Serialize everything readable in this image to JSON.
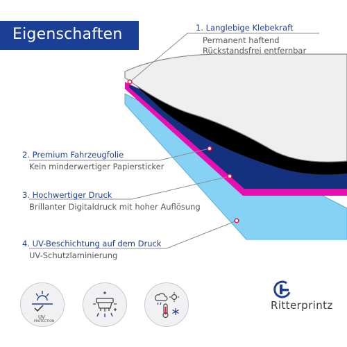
{
  "banner": {
    "title": "Eigenschaften",
    "bg": "#1b3f95"
  },
  "features": [
    {
      "title": "1. Langlebige Klebekraft",
      "lines": [
        "Permanent haftend",
        "Rückstandsfrei entfernbar"
      ]
    },
    {
      "title": "2. Premium Fahrzeugfolie",
      "lines": [
        "Kein minderwertiger Papiersticker"
      ]
    },
    {
      "title": "3. Hochwertiger Druck",
      "lines": [
        "Brillanter Digitaldruck mit hoher Auflösung"
      ]
    },
    {
      "title": "4. UV-Beschichtung auf dem Druck",
      "lines": [
        "UV-Schutzlaminierung"
      ]
    }
  ],
  "icons": {
    "uv_label": "UV",
    "uv_sub": "PROTECTION",
    "names": [
      "uv-protection-icon",
      "car-wash-icon",
      "weather-resistant-icon"
    ]
  },
  "brand": {
    "name": "Ritterprintz",
    "accent": "#1b3f95"
  },
  "colors": {
    "title": "#1e3f8c",
    "subtext": "#555555",
    "layer_white": "#efefef",
    "layer_black": "#000000",
    "layer_navy": "#14307e",
    "layer_magenta": "#e60fb2",
    "layer_light_blue": "#86d2f5",
    "marker": "#e8194b"
  }
}
